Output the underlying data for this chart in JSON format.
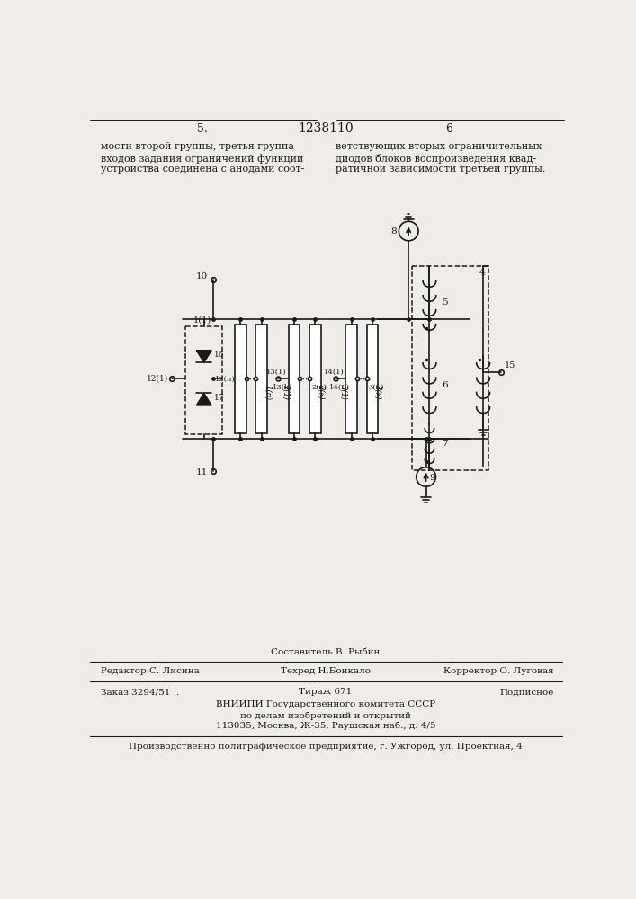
{
  "page_number_left": "5.",
  "patent_number": "1238110",
  "page_number_right": "6",
  "text_left": "мости второй группы, третья группа\nвходов задания ограничений функции\nустройства соединена с анодами соот-",
  "text_right": "ветствующих вторых ограничительных\nдиодов блоков воспроизведения квад-\nратичной зависимости третьей группы.",
  "footer_line1_center_top": "Составитель В. Рыбин",
  "footer_line1_left": "Редактор С. Лисина",
  "footer_line1_center": "Техред Н.Бонкало",
  "footer_line1_right": "Корректор О. Луговая",
  "footer_line2_left": "Заказ 3294/51  .",
  "footer_line2_center": "Тираж 671",
  "footer_line2_right": "Подписное",
  "footer_line3": "ВНИИПИ Государственного комитета СССР",
  "footer_line4": "по делам изобретений и открытий",
  "footer_line5": "113035, Москва, Ж-35, Раушская наб., д. 4/5",
  "footer_line6": "Производственно полиграфическое предприятие, г. Ужгород, ул. Проектная, 4",
  "bg_color": "#f0ede8",
  "line_color": "#1a1a1a"
}
